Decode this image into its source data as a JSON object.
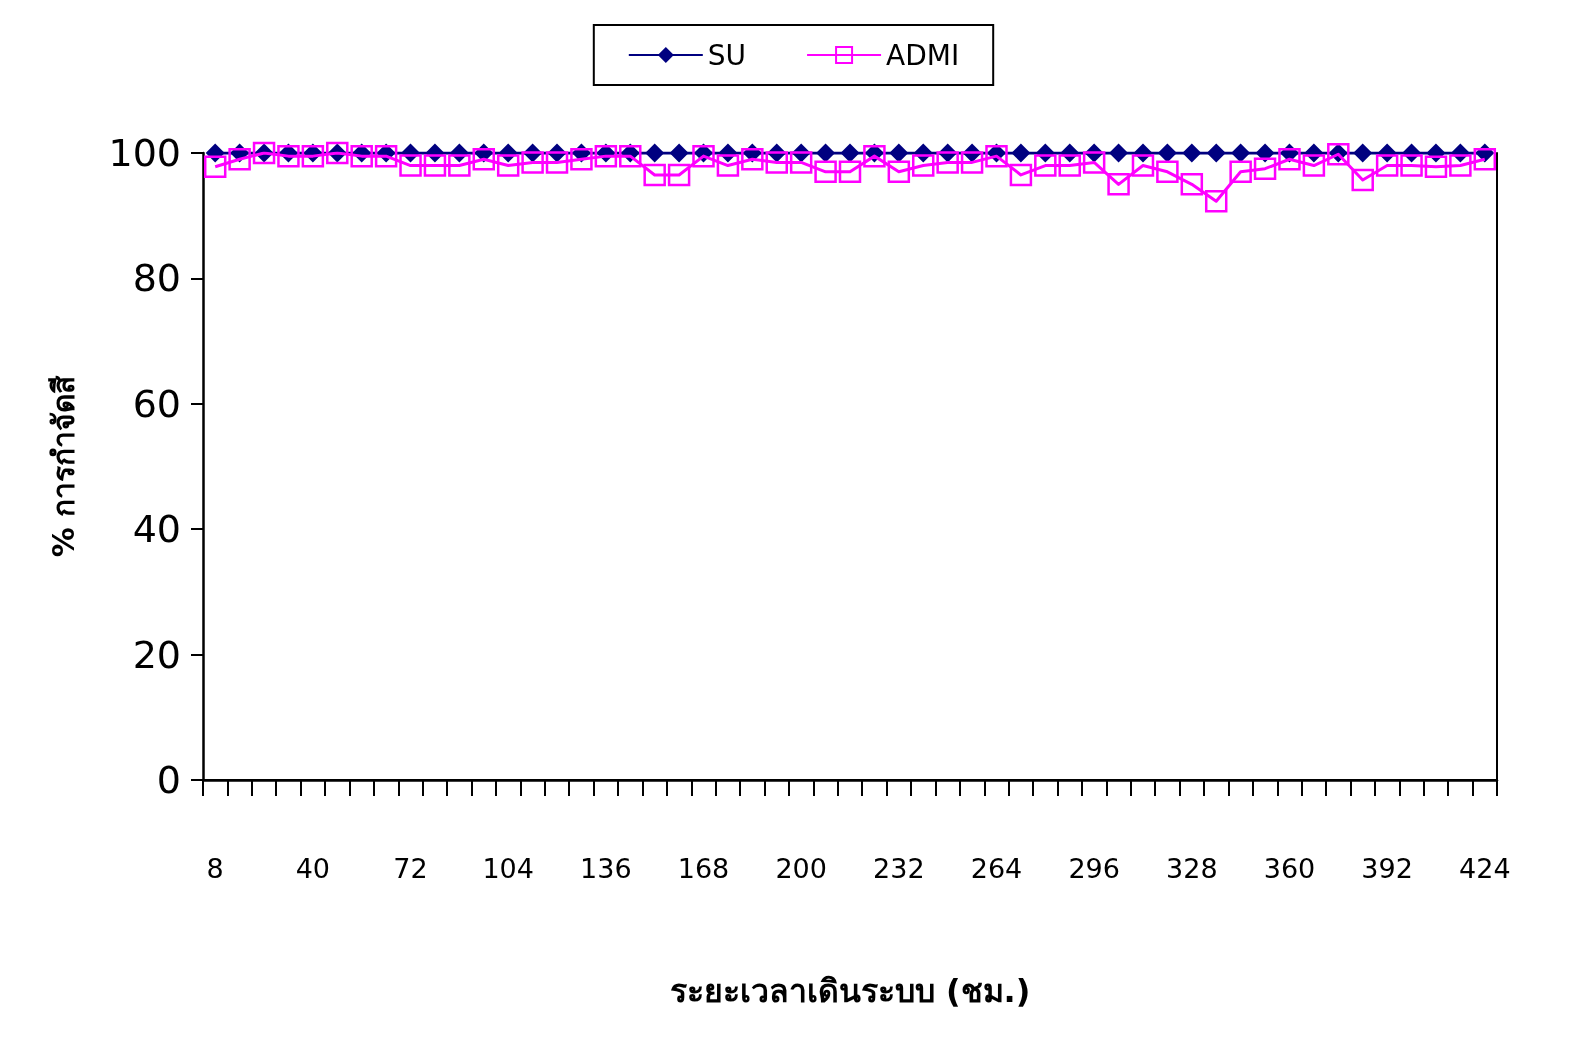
{
  "chart_data": {
    "type": "line",
    "xlabel": "ระยะเวลาเดินระบบ (ชม.)",
    "ylabel": "% การกำจัดสี",
    "categories": [
      "8",
      null,
      null,
      null,
      "40",
      null,
      null,
      null,
      "72",
      null,
      null,
      null,
      "104",
      null,
      null,
      null,
      "136",
      null,
      null,
      null,
      "168",
      null,
      null,
      null,
      "200",
      null,
      null,
      null,
      "232",
      null,
      null,
      null,
      "264",
      null,
      null,
      null,
      "296",
      null,
      null,
      null,
      "328",
      null,
      null,
      null,
      "360",
      null,
      null,
      null,
      "392",
      null,
      null,
      null,
      "424"
    ],
    "series": [
      {
        "name": "SU",
        "color": "#000080",
        "marker": "diamond",
        "values": [
          100,
          100,
          100,
          100,
          100,
          100,
          100,
          100,
          100,
          100,
          100,
          100,
          100,
          100,
          100,
          100,
          100,
          100,
          100,
          100,
          100,
          100,
          100,
          100,
          100,
          100,
          100,
          100,
          100,
          100,
          100,
          100,
          100,
          100,
          100,
          100,
          100,
          100,
          100,
          100,
          100,
          100,
          100,
          100,
          100,
          100,
          100,
          100,
          100,
          100,
          100,
          100,
          100
        ]
      },
      {
        "name": "ADMI",
        "color": "#ff00ff",
        "marker": "square",
        "values": [
          97.8,
          99,
          100,
          99.5,
          99.5,
          100,
          99.5,
          99.5,
          98,
          98,
          98,
          99,
          98,
          98.5,
          98.5,
          99,
          99.5,
          99.5,
          96.5,
          96.5,
          99.5,
          98,
          99,
          98.5,
          98.5,
          97,
          97,
          99.5,
          97,
          98,
          98.5,
          98.5,
          99.5,
          96.5,
          98,
          98,
          98.5,
          95,
          98,
          97,
          95,
          92.3,
          97,
          97.5,
          99,
          98,
          99.8,
          95.7,
          98,
          98,
          97.8,
          98,
          99
        ]
      }
    ],
    "ylim": [
      0,
      100
    ],
    "yticks": [
      0,
      20,
      40,
      60,
      80,
      100
    ],
    "grid": false,
    "legend": "top"
  }
}
